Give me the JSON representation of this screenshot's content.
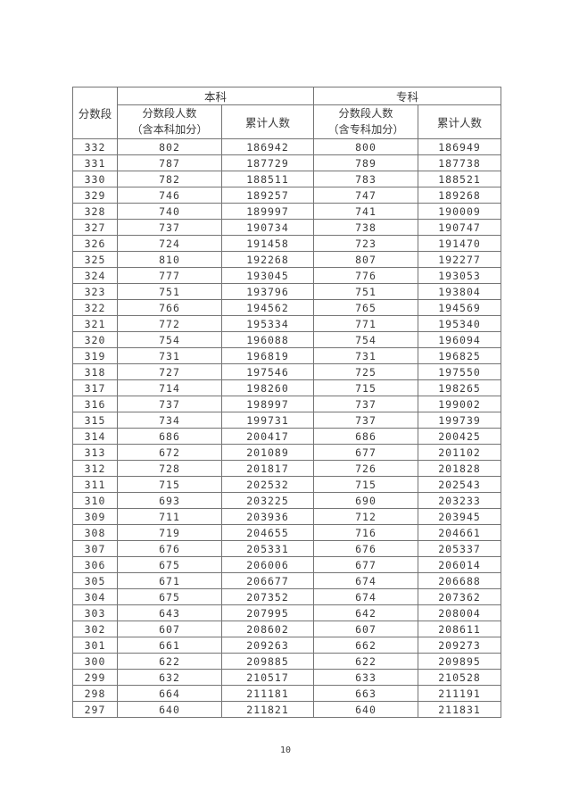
{
  "page": {
    "number": "10"
  },
  "table": {
    "headers": {
      "score_segment": "分数段",
      "undergrad": "本科",
      "college": "专科",
      "undergrad_seg_count_line1": "分数段人数",
      "undergrad_seg_count_line2": "（含本科加分）",
      "college_seg_count_line1": "分数段人数",
      "college_seg_count_line2": "（含专科加分）",
      "cumulative": "累计人数"
    },
    "rows": [
      [
        "332",
        "802",
        "186942",
        "800",
        "186949"
      ],
      [
        "331",
        "787",
        "187729",
        "789",
        "187738"
      ],
      [
        "330",
        "782",
        "188511",
        "783",
        "188521"
      ],
      [
        "329",
        "746",
        "189257",
        "747",
        "189268"
      ],
      [
        "328",
        "740",
        "189997",
        "741",
        "190009"
      ],
      [
        "327",
        "737",
        "190734",
        "738",
        "190747"
      ],
      [
        "326",
        "724",
        "191458",
        "723",
        "191470"
      ],
      [
        "325",
        "810",
        "192268",
        "807",
        "192277"
      ],
      [
        "324",
        "777",
        "193045",
        "776",
        "193053"
      ],
      [
        "323",
        "751",
        "193796",
        "751",
        "193804"
      ],
      [
        "322",
        "766",
        "194562",
        "765",
        "194569"
      ],
      [
        "321",
        "772",
        "195334",
        "771",
        "195340"
      ],
      [
        "320",
        "754",
        "196088",
        "754",
        "196094"
      ],
      [
        "319",
        "731",
        "196819",
        "731",
        "196825"
      ],
      [
        "318",
        "727",
        "197546",
        "725",
        "197550"
      ],
      [
        "317",
        "714",
        "198260",
        "715",
        "198265"
      ],
      [
        "316",
        "737",
        "198997",
        "737",
        "199002"
      ],
      [
        "315",
        "734",
        "199731",
        "737",
        "199739"
      ],
      [
        "314",
        "686",
        "200417",
        "686",
        "200425"
      ],
      [
        "313",
        "672",
        "201089",
        "677",
        "201102"
      ],
      [
        "312",
        "728",
        "201817",
        "726",
        "201828"
      ],
      [
        "311",
        "715",
        "202532",
        "715",
        "202543"
      ],
      [
        "310",
        "693",
        "203225",
        "690",
        "203233"
      ],
      [
        "309",
        "711",
        "203936",
        "712",
        "203945"
      ],
      [
        "308",
        "719",
        "204655",
        "716",
        "204661"
      ],
      [
        "307",
        "676",
        "205331",
        "676",
        "205337"
      ],
      [
        "306",
        "675",
        "206006",
        "677",
        "206014"
      ],
      [
        "305",
        "671",
        "206677",
        "674",
        "206688"
      ],
      [
        "304",
        "675",
        "207352",
        "674",
        "207362"
      ],
      [
        "303",
        "643",
        "207995",
        "642",
        "208004"
      ],
      [
        "302",
        "607",
        "208602",
        "607",
        "208611"
      ],
      [
        "301",
        "661",
        "209263",
        "662",
        "209273"
      ],
      [
        "300",
        "622",
        "209885",
        "622",
        "209895"
      ],
      [
        "299",
        "632",
        "210517",
        "633",
        "210528"
      ],
      [
        "298",
        "664",
        "211181",
        "663",
        "211191"
      ],
      [
        "297",
        "640",
        "211821",
        "640",
        "211831"
      ]
    ]
  }
}
